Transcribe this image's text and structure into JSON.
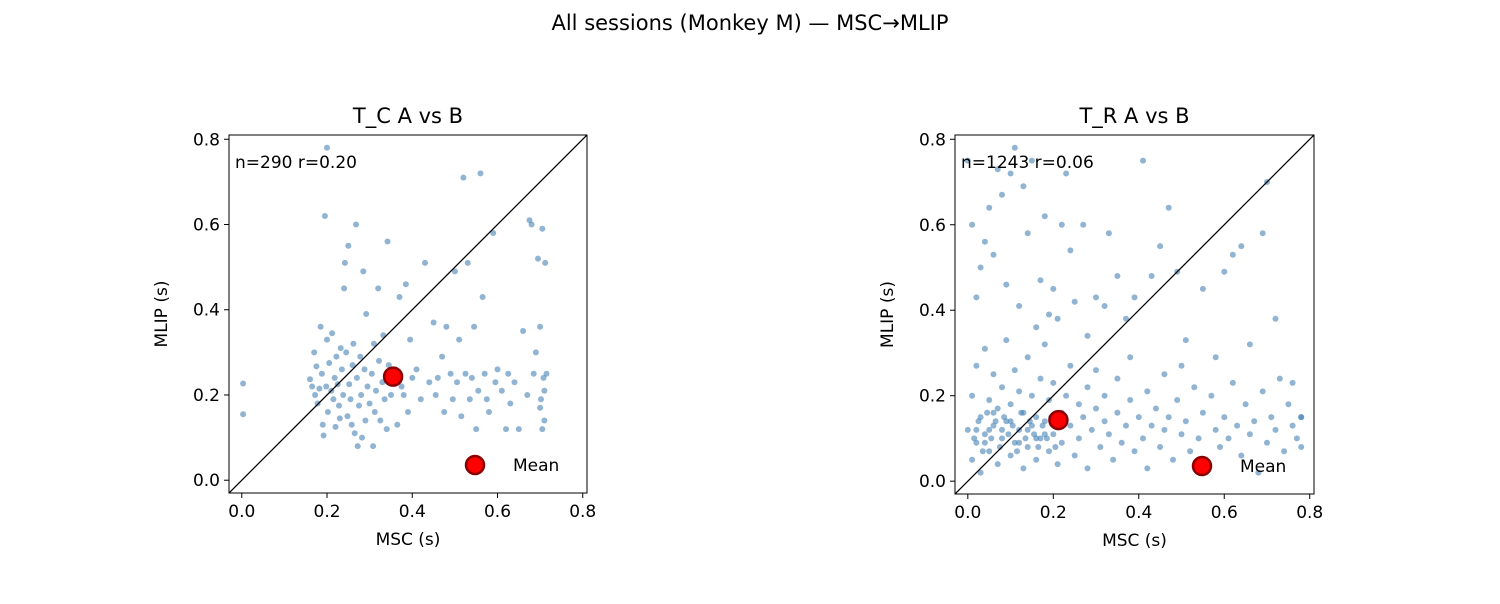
{
  "figure": {
    "suptitle": "All sessions (Monkey M) — MSC→MLIP"
  },
  "chart_data": [
    {
      "type": "scatter",
      "title": "T_C  A vs B",
      "xlabel": "MSC (s)",
      "ylabel": "MLIP (s)",
      "xlim": [
        -0.03,
        0.81
      ],
      "ylim": [
        -0.03,
        0.81
      ],
      "xticks": [
        0.0,
        0.2,
        0.4,
        0.6,
        0.8
      ],
      "yticks": [
        0.0,
        0.2,
        0.4,
        0.6,
        0.8
      ],
      "x_tick_labels": [
        "0.0",
        "0.2",
        "0.4",
        "0.6",
        "0.8"
      ],
      "y_tick_labels": [
        "0.0",
        "0.2",
        "0.4",
        "0.6",
        "0.8"
      ],
      "annotation": "n=290  r=0.20",
      "identity_line": true,
      "point_color": "#4682b4",
      "mean_color": "#ff0000",
      "mean_edge_color": "#8b0000",
      "mean": {
        "x": 0.355,
        "y": 0.243
      },
      "legend": {
        "label": "Mean",
        "position": "lower right"
      },
      "points": [
        [
          0.003,
          0.227
        ],
        [
          0.003,
          0.155
        ],
        [
          0.16,
          0.237
        ],
        [
          0.165,
          0.22
        ],
        [
          0.17,
          0.3
        ],
        [
          0.172,
          0.2
        ],
        [
          0.175,
          0.267
        ],
        [
          0.178,
          0.18
        ],
        [
          0.182,
          0.215
        ],
        [
          0.185,
          0.36
        ],
        [
          0.188,
          0.25
        ],
        [
          0.19,
          0.13
        ],
        [
          0.192,
          0.105
        ],
        [
          0.195,
          0.62
        ],
        [
          0.198,
          0.22
        ],
        [
          0.2,
          0.33
        ],
        [
          0.2,
          0.78
        ],
        [
          0.202,
          0.16
        ],
        [
          0.205,
          0.275
        ],
        [
          0.21,
          0.21
        ],
        [
          0.212,
          0.345
        ],
        [
          0.215,
          0.19
        ],
        [
          0.218,
          0.24
        ],
        [
          0.22,
          0.125
        ],
        [
          0.222,
          0.29
        ],
        [
          0.225,
          0.225
        ],
        [
          0.228,
          0.175
        ],
        [
          0.23,
          0.145
        ],
        [
          0.232,
          0.31
        ],
        [
          0.235,
          0.26
        ],
        [
          0.238,
          0.2
        ],
        [
          0.24,
          0.45
        ],
        [
          0.242,
          0.51
        ],
        [
          0.245,
          0.3
        ],
        [
          0.248,
          0.15
        ],
        [
          0.25,
          0.55
        ],
        [
          0.252,
          0.225
        ],
        [
          0.255,
          0.19
        ],
        [
          0.258,
          0.13
        ],
        [
          0.26,
          0.27
        ],
        [
          0.262,
          0.32
        ],
        [
          0.265,
          0.11
        ],
        [
          0.268,
          0.6
        ],
        [
          0.27,
          0.24
        ],
        [
          0.272,
          0.08
        ],
        [
          0.275,
          0.175
        ],
        [
          0.278,
          0.29
        ],
        [
          0.28,
          0.2
        ],
        [
          0.282,
          0.1
        ],
        [
          0.285,
          0.49
        ],
        [
          0.288,
          0.26
        ],
        [
          0.29,
          0.14
        ],
        [
          0.292,
          0.39
        ],
        [
          0.295,
          0.22
        ],
        [
          0.3,
          0.18
        ],
        [
          0.305,
          0.25
        ],
        [
          0.308,
          0.08
        ],
        [
          0.31,
          0.32
        ],
        [
          0.312,
          0.16
        ],
        [
          0.315,
          0.21
        ],
        [
          0.32,
          0.45
        ],
        [
          0.322,
          0.28
        ],
        [
          0.325,
          0.14
        ],
        [
          0.33,
          0.23
        ],
        [
          0.332,
          0.34
        ],
        [
          0.335,
          0.19
        ],
        [
          0.34,
          0.12
        ],
        [
          0.342,
          0.56
        ],
        [
          0.345,
          0.27
        ],
        [
          0.35,
          0.2
        ],
        [
          0.36,
          0.26
        ],
        [
          0.365,
          0.13
        ],
        [
          0.37,
          0.43
        ],
        [
          0.375,
          0.22
        ],
        [
          0.38,
          0.2
        ],
        [
          0.385,
          0.46
        ],
        [
          0.39,
          0.16
        ],
        [
          0.395,
          0.33
        ],
        [
          0.4,
          0.24
        ],
        [
          0.41,
          0.26
        ],
        [
          0.42,
          0.19
        ],
        [
          0.43,
          0.51
        ],
        [
          0.44,
          0.23
        ],
        [
          0.45,
          0.37
        ],
        [
          0.455,
          0.2
        ],
        [
          0.46,
          0.24
        ],
        [
          0.47,
          0.29
        ],
        [
          0.475,
          0.16
        ],
        [
          0.48,
          0.36
        ],
        [
          0.49,
          0.25
        ],
        [
          0.495,
          0.19
        ],
        [
          0.5,
          0.49
        ],
        [
          0.505,
          0.23
        ],
        [
          0.51,
          0.33
        ],
        [
          0.515,
          0.15
        ],
        [
          0.52,
          0.71
        ],
        [
          0.525,
          0.25
        ],
        [
          0.53,
          0.51
        ],
        [
          0.535,
          0.19
        ],
        [
          0.54,
          0.24
        ],
        [
          0.545,
          0.36
        ],
        [
          0.55,
          0.12
        ],
        [
          0.555,
          0.21
        ],
        [
          0.56,
          0.72
        ],
        [
          0.565,
          0.43
        ],
        [
          0.57,
          0.25
        ],
        [
          0.575,
          0.19
        ],
        [
          0.58,
          0.16
        ],
        [
          0.59,
          0.58
        ],
        [
          0.595,
          0.23
        ],
        [
          0.6,
          0.26
        ],
        [
          0.61,
          0.21
        ],
        [
          0.62,
          0.12
        ],
        [
          0.625,
          0.25
        ],
        [
          0.63,
          0.18
        ],
        [
          0.64,
          0.23
        ],
        [
          0.65,
          0.12
        ],
        [
          0.66,
          0.35
        ],
        [
          0.67,
          0.2
        ],
        [
          0.675,
          0.61
        ],
        [
          0.68,
          0.6
        ],
        [
          0.685,
          0.25
        ],
        [
          0.69,
          0.3
        ],
        [
          0.695,
          0.52
        ],
        [
          0.7,
          0.36
        ],
        [
          0.702,
          0.19
        ],
        [
          0.705,
          0.59
        ],
        [
          0.708,
          0.24
        ],
        [
          0.71,
          0.14
        ],
        [
          0.712,
          0.51
        ],
        [
          0.715,
          0.25
        ],
        [
          0.705,
          0.12
        ],
        [
          0.7,
          0.17
        ],
        [
          0.71,
          0.21
        ]
      ]
    },
    {
      "type": "scatter",
      "title": "T_R  A vs B",
      "xlabel": "MSC (s)",
      "ylabel": "MLIP (s)",
      "xlim": [
        -0.03,
        0.81
      ],
      "ylim": [
        -0.03,
        0.81
      ],
      "xticks": [
        0.0,
        0.2,
        0.4,
        0.6,
        0.8
      ],
      "yticks": [
        0.0,
        0.2,
        0.4,
        0.6,
        0.8
      ],
      "x_tick_labels": [
        "0.0",
        "0.2",
        "0.4",
        "0.6",
        "0.8"
      ],
      "y_tick_labels": [
        "0.0",
        "0.2",
        "0.4",
        "0.6",
        "0.8"
      ],
      "annotation": "n=1243  r=0.06",
      "identity_line": true,
      "point_color": "#4682b4",
      "mean_color": "#ff0000",
      "mean_edge_color": "#8b0000",
      "mean": {
        "x": 0.212,
        "y": 0.143
      },
      "legend": {
        "label": "Mean",
        "position": "lower right"
      },
      "points": [
        [
          0.0,
          0.75
        ],
        [
          0.01,
          0.6
        ],
        [
          0.02,
          0.43
        ],
        [
          0.03,
          0.5
        ],
        [
          0.04,
          0.56
        ],
        [
          0.05,
          0.64
        ],
        [
          0.06,
          0.53
        ],
        [
          0.07,
          0.73
        ],
        [
          0.08,
          0.67
        ],
        [
          0.09,
          0.46
        ],
        [
          0.1,
          0.72
        ],
        [
          0.11,
          0.78
        ],
        [
          0.12,
          0.41
        ],
        [
          0.13,
          0.69
        ],
        [
          0.14,
          0.58
        ],
        [
          0.15,
          0.75
        ],
        [
          0.16,
          0.36
        ],
        [
          0.17,
          0.47
        ],
        [
          0.18,
          0.62
        ],
        [
          0.19,
          0.39
        ],
        [
          0.2,
          0.45
        ],
        [
          0.21,
          0.38
        ],
        [
          0.22,
          0.6
        ],
        [
          0.23,
          0.72
        ],
        [
          0.24,
          0.54
        ],
        [
          0.25,
          0.42
        ],
        [
          0.27,
          0.6
        ],
        [
          0.28,
          0.34
        ],
        [
          0.3,
          0.43
        ],
        [
          0.32,
          0.41
        ],
        [
          0.33,
          0.58
        ],
        [
          0.35,
          0.48
        ],
        [
          0.37,
          0.38
        ],
        [
          0.39,
          0.43
        ],
        [
          0.41,
          0.75
        ],
        [
          0.43,
          0.48
        ],
        [
          0.45,
          0.55
        ],
        [
          0.47,
          0.64
        ],
        [
          0.49,
          0.49
        ],
        [
          0.51,
          0.33
        ],
        [
          0.55,
          0.45
        ],
        [
          0.6,
          0.49
        ],
        [
          0.62,
          0.53
        ],
        [
          0.64,
          0.55
        ],
        [
          0.66,
          0.32
        ],
        [
          0.69,
          0.58
        ],
        [
          0.7,
          0.7
        ],
        [
          0.72,
          0.38
        ],
        [
          0.76,
          0.23
        ],
        [
          0.78,
          0.15
        ],
        [
          0.0,
          0.12
        ],
        [
          0.01,
          0.05
        ],
        [
          0.01,
          0.2
        ],
        [
          0.02,
          0.09
        ],
        [
          0.02,
          0.27
        ],
        [
          0.03,
          0.15
        ],
        [
          0.03,
          0.02
        ],
        [
          0.04,
          0.11
        ],
        [
          0.04,
          0.31
        ],
        [
          0.05,
          0.07
        ],
        [
          0.05,
          0.19
        ],
        [
          0.06,
          0.13
        ],
        [
          0.06,
          0.25
        ],
        [
          0.07,
          0.04
        ],
        [
          0.07,
          0.17
        ],
        [
          0.08,
          0.1
        ],
        [
          0.08,
          0.22
        ],
        [
          0.09,
          0.14
        ],
        [
          0.09,
          0.33
        ],
        [
          0.1,
          0.06
        ],
        [
          0.1,
          0.18
        ],
        [
          0.11,
          0.09
        ],
        [
          0.11,
          0.26
        ],
        [
          0.12,
          0.12
        ],
        [
          0.12,
          0.21
        ],
        [
          0.13,
          0.03
        ],
        [
          0.13,
          0.16
        ],
        [
          0.14,
          0.08
        ],
        [
          0.14,
          0.29
        ],
        [
          0.15,
          0.13
        ],
        [
          0.15,
          0.2
        ],
        [
          0.16,
          0.05
        ],
        [
          0.16,
          0.15
        ],
        [
          0.17,
          0.1
        ],
        [
          0.17,
          0.24
        ],
        [
          0.18,
          0.14
        ],
        [
          0.18,
          0.32
        ],
        [
          0.19,
          0.07
        ],
        [
          0.19,
          0.19
        ],
        [
          0.2,
          0.11
        ],
        [
          0.2,
          0.23
        ],
        [
          0.21,
          0.04
        ],
        [
          0.22,
          0.16
        ],
        [
          0.22,
          0.09
        ],
        [
          0.23,
          0.2
        ],
        [
          0.24,
          0.13
        ],
        [
          0.24,
          0.27
        ],
        [
          0.25,
          0.06
        ],
        [
          0.26,
          0.18
        ],
        [
          0.26,
          0.1
        ],
        [
          0.27,
          0.15
        ],
        [
          0.28,
          0.22
        ],
        [
          0.28,
          0.03
        ],
        [
          0.29,
          0.12
        ],
        [
          0.3,
          0.17
        ],
        [
          0.3,
          0.26
        ],
        [
          0.31,
          0.08
        ],
        [
          0.32,
          0.14
        ],
        [
          0.32,
          0.2
        ],
        [
          0.33,
          0.11
        ],
        [
          0.34,
          0.05
        ],
        [
          0.35,
          0.16
        ],
        [
          0.35,
          0.24
        ],
        [
          0.36,
          0.09
        ],
        [
          0.37,
          0.13
        ],
        [
          0.38,
          0.19
        ],
        [
          0.38,
          0.29
        ],
        [
          0.39,
          0.07
        ],
        [
          0.4,
          0.15
        ],
        [
          0.41,
          0.1
        ],
        [
          0.42,
          0.21
        ],
        [
          0.42,
          0.03
        ],
        [
          0.43,
          0.13
        ],
        [
          0.44,
          0.17
        ],
        [
          0.45,
          0.08
        ],
        [
          0.46,
          0.25
        ],
        [
          0.46,
          0.12
        ],
        [
          0.47,
          0.15
        ],
        [
          0.48,
          0.05
        ],
        [
          0.49,
          0.19
        ],
        [
          0.5,
          0.11
        ],
        [
          0.5,
          0.27
        ],
        [
          0.51,
          0.14
        ],
        [
          0.52,
          0.07
        ],
        [
          0.53,
          0.22
        ],
        [
          0.54,
          0.1
        ],
        [
          0.55,
          0.16
        ],
        [
          0.56,
          0.04
        ],
        [
          0.57,
          0.2
        ],
        [
          0.58,
          0.12
        ],
        [
          0.58,
          0.29
        ],
        [
          0.59,
          0.08
        ],
        [
          0.6,
          0.15
        ],
        [
          0.61,
          0.1
        ],
        [
          0.62,
          0.23
        ],
        [
          0.63,
          0.13
        ],
        [
          0.64,
          0.06
        ],
        [
          0.65,
          0.18
        ],
        [
          0.66,
          0.11
        ],
        [
          0.67,
          0.14
        ],
        [
          0.68,
          0.02
        ],
        [
          0.69,
          0.21
        ],
        [
          0.7,
          0.09
        ],
        [
          0.71,
          0.15
        ],
        [
          0.72,
          0.12
        ],
        [
          0.73,
          0.24
        ],
        [
          0.74,
          0.07
        ],
        [
          0.75,
          0.18
        ],
        [
          0.76,
          0.13
        ],
        [
          0.77,
          0.1
        ],
        [
          0.78,
          0.08
        ],
        [
          0.78,
          0.15
        ],
        [
          0.015,
          0.1
        ],
        [
          0.025,
          0.14
        ],
        [
          0.035,
          0.07
        ],
        [
          0.045,
          0.16
        ],
        [
          0.055,
          0.1
        ],
        [
          0.065,
          0.14
        ],
        [
          0.075,
          0.08
        ],
        [
          0.085,
          0.15
        ],
        [
          0.095,
          0.11
        ],
        [
          0.105,
          0.13
        ],
        [
          0.115,
          0.07
        ],
        [
          0.125,
          0.16
        ],
        [
          0.135,
          0.1
        ],
        [
          0.145,
          0.14
        ],
        [
          0.155,
          0.11
        ],
        [
          0.165,
          0.08
        ],
        [
          0.175,
          0.13
        ],
        [
          0.185,
          0.1
        ],
        [
          0.195,
          0.15
        ],
        [
          0.205,
          0.08
        ],
        [
          0.02,
          0.12
        ],
        [
          0.04,
          0.09
        ],
        [
          0.06,
          0.16
        ],
        [
          0.08,
          0.12
        ],
        [
          0.1,
          0.14
        ],
        [
          0.12,
          0.09
        ],
        [
          0.14,
          0.12
        ],
        [
          0.16,
          0.1
        ],
        [
          0.18,
          0.11
        ],
        [
          0.05,
          0.12
        ]
      ]
    }
  ]
}
